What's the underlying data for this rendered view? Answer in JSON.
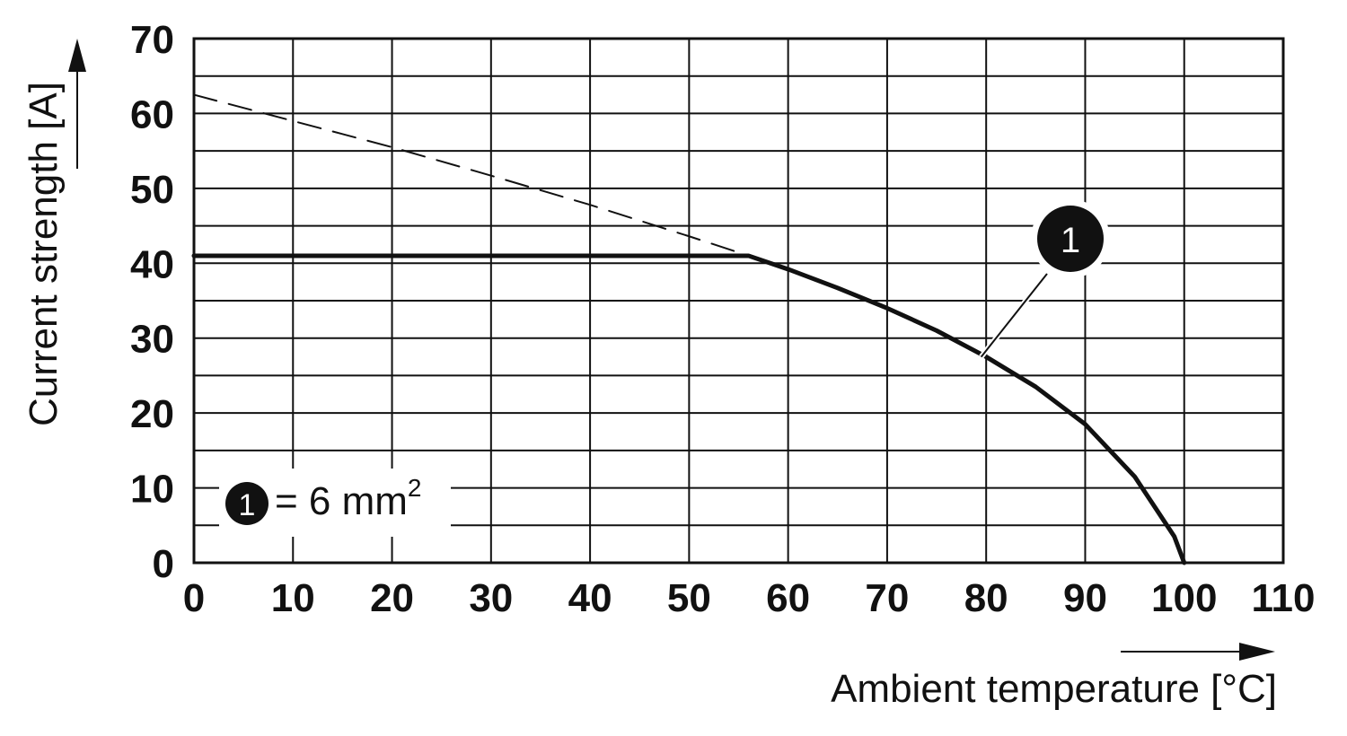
{
  "chart_data": {
    "type": "line",
    "xlabel": "Ambient temperature [°C]",
    "ylabel": "Current strength [A]",
    "xlim": [
      0,
      110
    ],
    "ylim": [
      0,
      70
    ],
    "x_ticks": [
      "0",
      "10",
      "20",
      "30",
      "40",
      "50",
      "60",
      "70",
      "80",
      "90",
      "100",
      "110"
    ],
    "y_ticks": [
      "0",
      "10",
      "20",
      "30",
      "40",
      "50",
      "60",
      "70"
    ],
    "grid": true,
    "grid_x_step": 10,
    "grid_y_step": 5,
    "series": [
      {
        "label": "1",
        "style": "solid",
        "x": [
          0,
          56,
          60,
          65,
          70,
          75,
          80,
          85,
          90,
          95,
          97,
          99,
          100
        ],
        "y": [
          41,
          41,
          39.2,
          36.7,
          34,
          31,
          27.5,
          23.5,
          18.5,
          11.5,
          7.5,
          3.5,
          0
        ]
      },
      {
        "style": "dashed",
        "x": [
          0,
          10,
          20,
          30,
          40,
          50,
          56
        ],
        "y": [
          62.5,
          59,
          55.5,
          51.7,
          47.8,
          43.6,
          41
        ]
      }
    ],
    "callout": {
      "label": "1",
      "at_x": 79.5,
      "at_y": 27.5
    },
    "legend": {
      "marker": "1",
      "text": "= 6 mm",
      "superscript": "2",
      "placement": "bottom-left"
    }
  }
}
